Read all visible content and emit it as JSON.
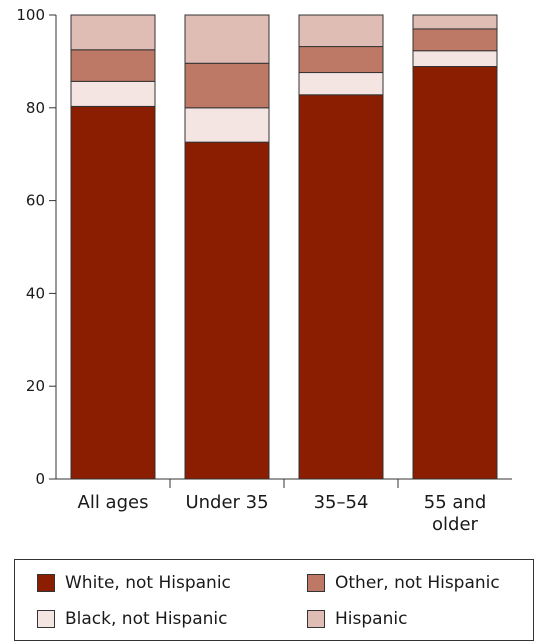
{
  "chart_data": {
    "type": "bar",
    "stacked": true,
    "categories": [
      "All ages",
      "Under 35",
      "35–54",
      "55 and older"
    ],
    "series": [
      {
        "name": "White, not Hispanic",
        "color": "#8b1e00",
        "values": [
          80.3,
          72.6,
          82.8,
          88.9
        ]
      },
      {
        "name": "Black, not Hispanic",
        "color": "#f4e4e2",
        "values": [
          5.4,
          7.4,
          4.8,
          3.4
        ]
      },
      {
        "name": "Other, not Hispanic",
        "color": "#bd7866",
        "values": [
          6.8,
          9.6,
          5.6,
          4.7
        ]
      },
      {
        "name": "Hispanic",
        "color": "#e0bdb4",
        "values": [
          7.5,
          10.4,
          6.8,
          3.0
        ]
      }
    ],
    "y_ticks": [
      0,
      20,
      40,
      60,
      80,
      100
    ],
    "ylim": [
      0,
      100
    ],
    "title": "",
    "xlabel": "",
    "ylabel": "",
    "grid": false,
    "legend_position": "bottom",
    "legend_order": [
      0,
      1,
      2,
      3
    ]
  }
}
